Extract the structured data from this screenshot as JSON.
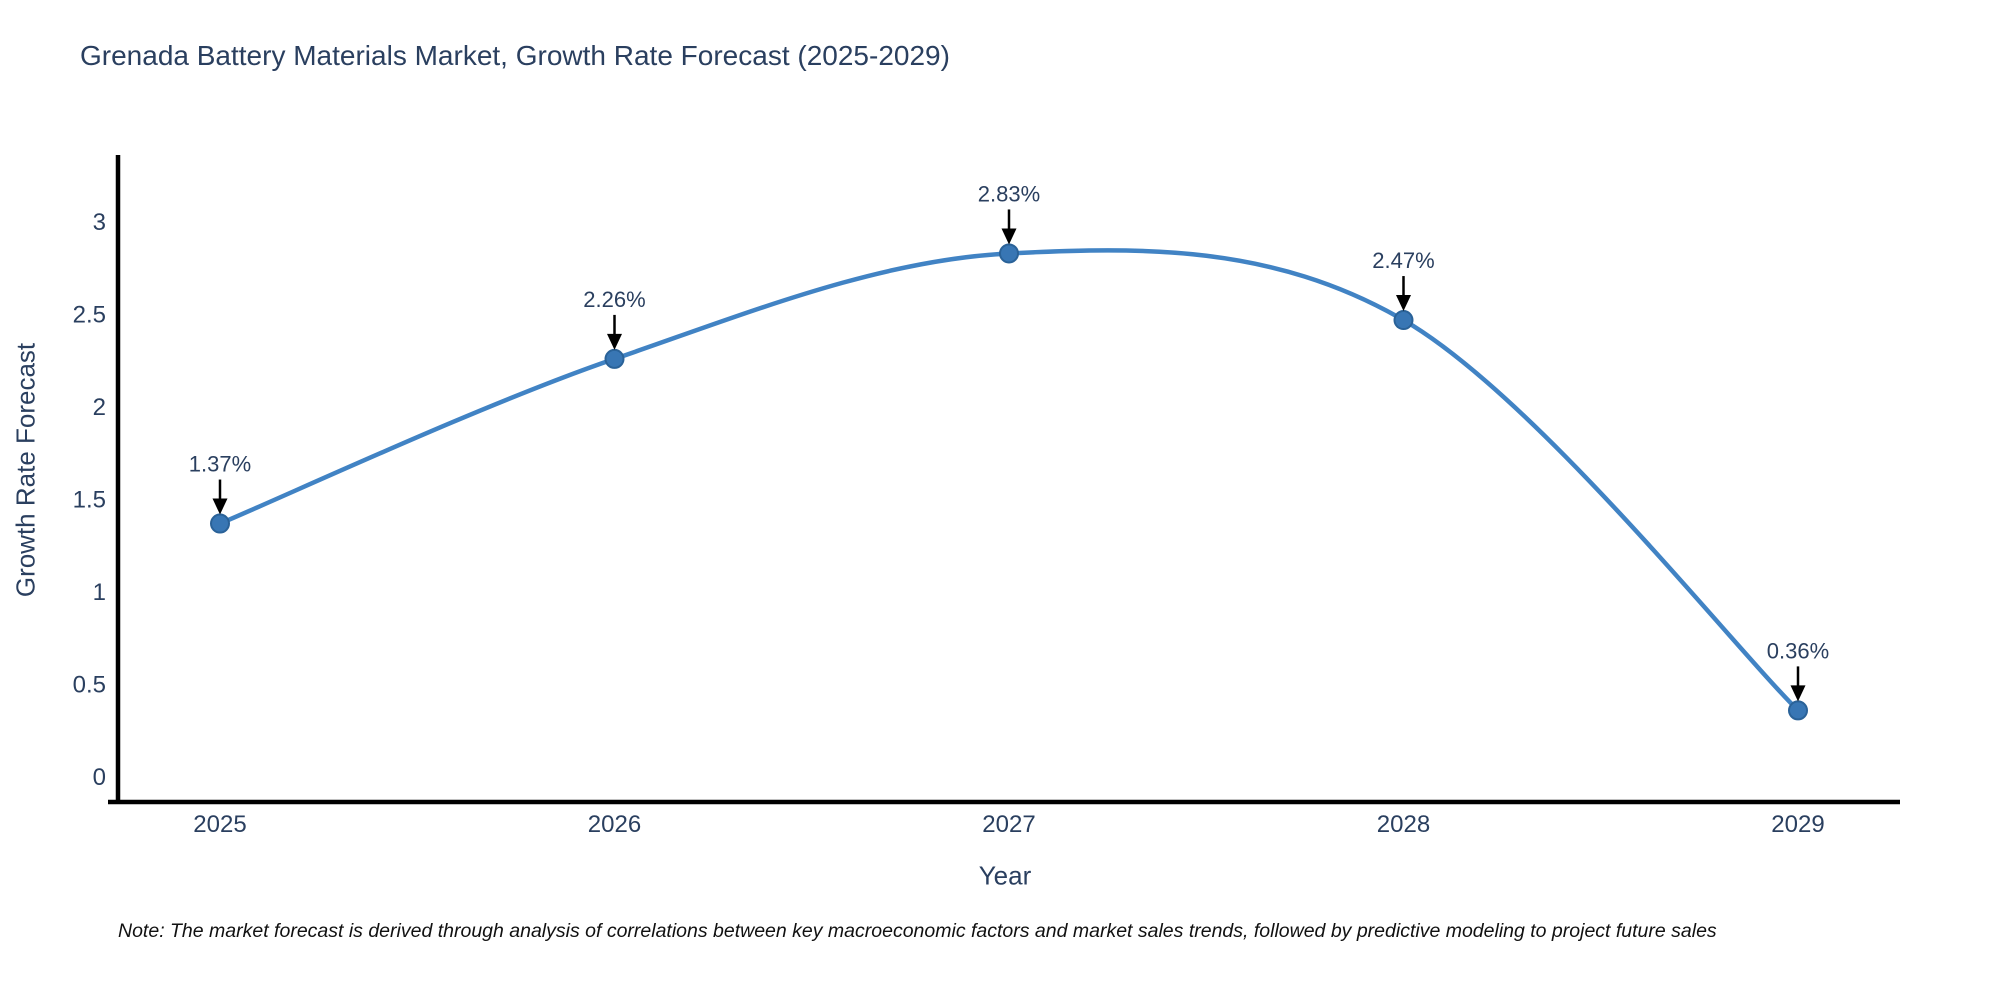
{
  "title": "Grenada Battery Materials Market, Growth Rate Forecast (2025-2029)",
  "note": "Note: The market forecast is derived through analysis of correlations between key macroeconomic factors and market sales trends, followed by predictive modeling to project future sales",
  "colors": {
    "title_text": "#2a3f5f",
    "tick_text": "#2a3f5f",
    "axis_line": "#000000",
    "line": "#4183c4",
    "marker_fill": "#3876b4",
    "marker_stroke": "#2a6298",
    "arrow": "#000000",
    "background": "#ffffff"
  },
  "chart_data": {
    "type": "line",
    "title": "Grenada Battery Materials Market, Growth Rate Forecast (2025-2029)",
    "x": [
      2025,
      2026,
      2027,
      2028,
      2029
    ],
    "series": [
      {
        "name": "Growth Rate Forecast",
        "values": [
          1.37,
          2.26,
          2.83,
          2.47,
          0.36
        ],
        "point_labels": [
          "1.37%",
          "2.26%",
          "2.83%",
          "2.47%",
          "0.36%"
        ]
      }
    ],
    "xlabel": "Year",
    "ylabel": "Growth Rate Forecast",
    "ylim": [
      0,
      3
    ],
    "yticks": [
      0,
      0.5,
      1,
      1.5,
      2,
      2.5,
      3
    ],
    "ytick_labels": [
      "0",
      "0.5",
      "1",
      "1.5",
      "2",
      "2.5",
      "3"
    ],
    "line_shape": "spline",
    "grid": false,
    "legend": false,
    "annotations_with_arrows": true
  }
}
